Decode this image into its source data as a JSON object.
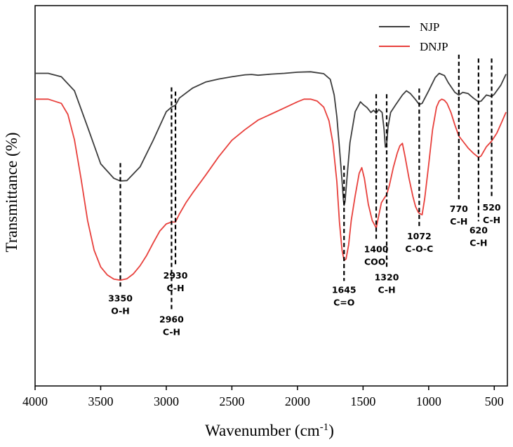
{
  "chart_data": {
    "type": "line",
    "title": "",
    "xlabel": "Wavenumber (cm",
    "xlabel_sup": "-1",
    "xlabel_close": ")",
    "ylabel": "Transmittance (%)",
    "xlim": [
      4000,
      400
    ],
    "ylim": [
      0,
      100
    ],
    "x_ticks": [
      {
        "value": 4000,
        "label": "4000"
      },
      {
        "value": 3500,
        "label": "3500"
      },
      {
        "value": 3000,
        "label": "3000"
      },
      {
        "value": 2500,
        "label": "2500"
      },
      {
        "value": 2000,
        "label": "2000"
      },
      {
        "value": 1500,
        "label": "1500"
      },
      {
        "value": 1000,
        "label": "1000"
      },
      {
        "value": 500,
        "label": "500"
      }
    ],
    "legend": [
      {
        "name": "NJP",
        "color": "#3c3c3c"
      },
      {
        "name": "DNJP",
        "color": "#e8403c"
      }
    ],
    "series": [
      {
        "name": "NJP",
        "color": "#3c3c3c",
        "points": [
          [
            4000,
            82.2
          ],
          [
            3900,
            82.2
          ],
          [
            3800,
            81.3
          ],
          [
            3700,
            77.6
          ],
          [
            3600,
            68.1
          ],
          [
            3500,
            58.4
          ],
          [
            3400,
            54.6
          ],
          [
            3350,
            53.9
          ],
          [
            3300,
            54.0
          ],
          [
            3200,
            57.6
          ],
          [
            3100,
            64.6
          ],
          [
            3000,
            72.1
          ],
          [
            2960,
            73.3
          ],
          [
            2930,
            73.8
          ],
          [
            2900,
            75.7
          ],
          [
            2800,
            78.3
          ],
          [
            2700,
            79.9
          ],
          [
            2600,
            80.7
          ],
          [
            2500,
            81.3
          ],
          [
            2400,
            81.8
          ],
          [
            2350,
            81.9
          ],
          [
            2300,
            81.7
          ],
          [
            2200,
            82.0
          ],
          [
            2100,
            82.2
          ],
          [
            2000,
            82.5
          ],
          [
            1900,
            82.6
          ],
          [
            1800,
            82.1
          ],
          [
            1750,
            80.6
          ],
          [
            1720,
            76.5
          ],
          [
            1700,
            70.8
          ],
          [
            1680,
            62.6
          ],
          [
            1660,
            53.9
          ],
          [
            1650,
            49.0
          ],
          [
            1645,
            47.5
          ],
          [
            1638,
            48.4
          ],
          [
            1620,
            55.7
          ],
          [
            1600,
            64.0
          ],
          [
            1560,
            72.1
          ],
          [
            1520,
            74.7
          ],
          [
            1500,
            74.0
          ],
          [
            1470,
            73.2
          ],
          [
            1440,
            71.9
          ],
          [
            1420,
            72.5
          ],
          [
            1400,
            71.7
          ],
          [
            1380,
            72.7
          ],
          [
            1355,
            71.9
          ],
          [
            1340,
            67.4
          ],
          [
            1330,
            62.8
          ],
          [
            1320,
            63.6
          ],
          [
            1310,
            68.1
          ],
          [
            1290,
            71.9
          ],
          [
            1250,
            74.0
          ],
          [
            1200,
            76.5
          ],
          [
            1170,
            77.6
          ],
          [
            1140,
            76.9
          ],
          [
            1100,
            75.3
          ],
          [
            1072,
            74.0
          ],
          [
            1050,
            74.3
          ],
          [
            1000,
            77.6
          ],
          [
            950,
            81.1
          ],
          [
            920,
            82.2
          ],
          [
            880,
            81.6
          ],
          [
            850,
            79.7
          ],
          [
            800,
            77.2
          ],
          [
            770,
            76.5
          ],
          [
            740,
            77.2
          ],
          [
            700,
            76.9
          ],
          [
            660,
            75.7
          ],
          [
            620,
            74.7
          ],
          [
            600,
            74.9
          ],
          [
            560,
            76.5
          ],
          [
            520,
            76.1
          ],
          [
            500,
            76.7
          ],
          [
            450,
            79.1
          ],
          [
            410,
            82.0
          ]
        ]
      },
      {
        "name": "DNJP",
        "color": "#e8403c",
        "points": [
          [
            4000,
            75.4
          ],
          [
            3900,
            75.4
          ],
          [
            3800,
            74.3
          ],
          [
            3750,
            71.4
          ],
          [
            3700,
            64.7
          ],
          [
            3650,
            54.6
          ],
          [
            3600,
            43.5
          ],
          [
            3550,
            35.7
          ],
          [
            3500,
            31.3
          ],
          [
            3450,
            29.2
          ],
          [
            3400,
            28.1
          ],
          [
            3350,
            27.8
          ],
          [
            3300,
            28.2
          ],
          [
            3250,
            29.5
          ],
          [
            3200,
            31.6
          ],
          [
            3150,
            34.3
          ],
          [
            3100,
            37.6
          ],
          [
            3050,
            40.7
          ],
          [
            3000,
            42.6
          ],
          [
            2960,
            43.1
          ],
          [
            2930,
            43.1
          ],
          [
            2900,
            45.2
          ],
          [
            2850,
            48.2
          ],
          [
            2800,
            50.7
          ],
          [
            2700,
            55.4
          ],
          [
            2600,
            60.3
          ],
          [
            2500,
            64.6
          ],
          [
            2400,
            67.4
          ],
          [
            2300,
            69.9
          ],
          [
            2200,
            71.5
          ],
          [
            2100,
            73.1
          ],
          [
            2000,
            74.7
          ],
          [
            1950,
            75.4
          ],
          [
            1900,
            75.4
          ],
          [
            1850,
            74.9
          ],
          [
            1800,
            73.3
          ],
          [
            1760,
            69.7
          ],
          [
            1730,
            63.8
          ],
          [
            1700,
            53.7
          ],
          [
            1680,
            43.1
          ],
          [
            1660,
            35.7
          ],
          [
            1645,
            33.0
          ],
          [
            1630,
            33.4
          ],
          [
            1610,
            37.1
          ],
          [
            1590,
            43.5
          ],
          [
            1560,
            50.0
          ],
          [
            1530,
            55.9
          ],
          [
            1510,
            57.4
          ],
          [
            1490,
            54.6
          ],
          [
            1460,
            47.8
          ],
          [
            1430,
            43.5
          ],
          [
            1410,
            42.2
          ],
          [
            1400,
            41.5
          ],
          [
            1385,
            44.1
          ],
          [
            1360,
            48.2
          ],
          [
            1340,
            49.3
          ],
          [
            1320,
            50.3
          ],
          [
            1300,
            52.7
          ],
          [
            1270,
            57.4
          ],
          [
            1240,
            61.2
          ],
          [
            1220,
            63.1
          ],
          [
            1200,
            63.8
          ],
          [
            1180,
            60.3
          ],
          [
            1150,
            54.6
          ],
          [
            1120,
            49.8
          ],
          [
            1100,
            47.2
          ],
          [
            1080,
            45.7
          ],
          [
            1072,
            45.4
          ],
          [
            1050,
            45.0
          ],
          [
            1030,
            49.3
          ],
          [
            1000,
            58.1
          ],
          [
            970,
            67.4
          ],
          [
            940,
            73.3
          ],
          [
            920,
            74.9
          ],
          [
            900,
            75.4
          ],
          [
            880,
            75.1
          ],
          [
            860,
            74.3
          ],
          [
            830,
            71.9
          ],
          [
            800,
            68.6
          ],
          [
            770,
            65.7
          ],
          [
            740,
            64.4
          ],
          [
            700,
            62.6
          ],
          [
            660,
            61.2
          ],
          [
            620,
            60.1
          ],
          [
            600,
            60.5
          ],
          [
            560,
            62.9
          ],
          [
            520,
            64.4
          ],
          [
            480,
            66.5
          ],
          [
            440,
            69.6
          ],
          [
            410,
            72.0
          ]
        ]
      }
    ],
    "annotations": [
      {
        "wavenumber": 3350,
        "y_top": 58.6,
        "y_bottom": 25.4,
        "side": "below",
        "lines": [
          "3350",
          "O-H"
        ]
      },
      {
        "wavenumber": 2960,
        "y_top": 78.5,
        "y_bottom": 19.8,
        "side": "below",
        "lines": [
          "2960",
          "C-H"
        ]
      },
      {
        "wavenumber": 2930,
        "y_top": 77.4,
        "y_bottom": 31.4,
        "side": "below",
        "lines": [
          "2930",
          "C-H"
        ]
      },
      {
        "wavenumber": 1645,
        "y_top": 57.9,
        "y_bottom": 27.6,
        "side": "below",
        "lines": [
          "1645",
          "C=O"
        ]
      },
      {
        "wavenumber": 1400,
        "y_top": 76.7,
        "y_bottom": 38.3,
        "side": "below",
        "lines": [
          "1400",
          "COO"
        ],
        "sup": "-"
      },
      {
        "wavenumber": 1320,
        "y_top": 76.7,
        "y_bottom": 30.9,
        "side": "below",
        "lines": [
          "1320",
          "C-H"
        ]
      },
      {
        "wavenumber": 1072,
        "y_top": 78.2,
        "y_bottom": 41.7,
        "side": "below",
        "lines": [
          "1072",
          "C-O-C"
        ]
      },
      {
        "wavenumber": 770,
        "y_top": 87.1,
        "y_bottom": 48.9,
        "side": "below",
        "lines": [
          "770",
          "C-H"
        ]
      },
      {
        "wavenumber": 620,
        "y_top": 86.1,
        "y_bottom": 43.3,
        "side": "below",
        "lines": [
          "620",
          "C-H"
        ]
      },
      {
        "wavenumber": 520,
        "y_top": 86.1,
        "y_bottom": 49.3,
        "side": "below",
        "lines": [
          "520",
          "C-H"
        ]
      }
    ]
  }
}
